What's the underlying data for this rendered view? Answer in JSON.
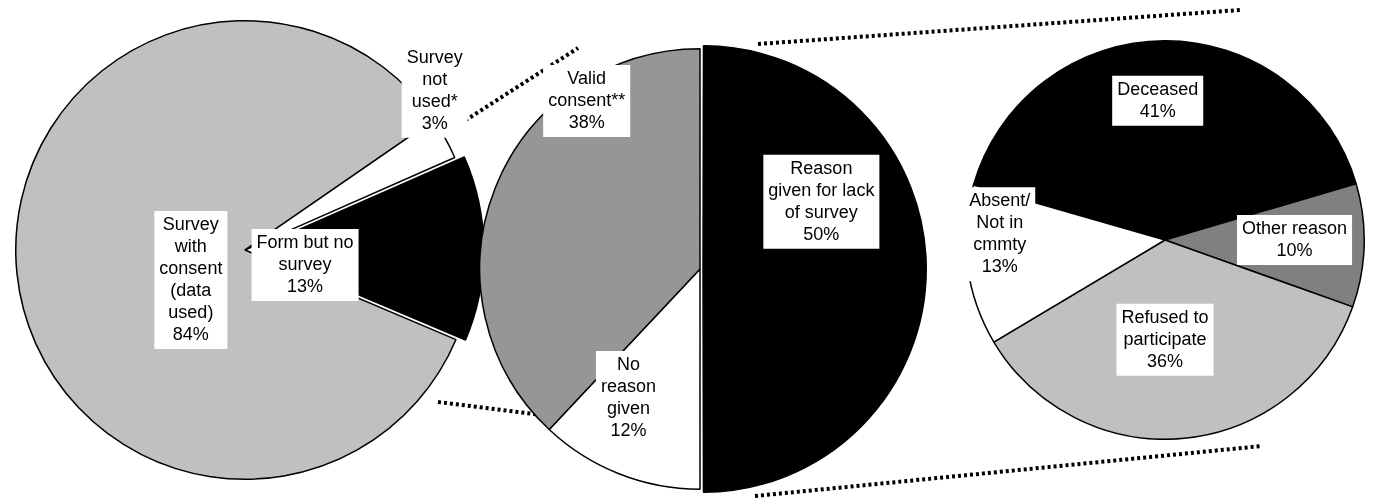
{
  "chart_data": [
    {
      "type": "pie",
      "categories": [
        "Survey with consent (data used)",
        "Survey not used*",
        "Form but no survey"
      ],
      "values": [
        84,
        3,
        13
      ],
      "value_labels": [
        "84%",
        "3%",
        "13%"
      ],
      "colors": [
        "#c0c0c0",
        "#ffffff",
        "#000000"
      ],
      "legend": false
    },
    {
      "type": "pie",
      "categories": [
        "Reason given for lack of survey",
        "No reason given",
        "Valid consent**"
      ],
      "values": [
        50,
        12,
        38
      ],
      "value_labels": [
        "50%",
        "12%",
        "38%"
      ],
      "colors": [
        "#000000",
        "#ffffff",
        "#969696"
      ],
      "legend": false
    },
    {
      "type": "pie",
      "categories": [
        "Deceased",
        "Other reason",
        "Refused to participate",
        "Absent/ Not in cmmty"
      ],
      "values": [
        41,
        10,
        36,
        13
      ],
      "value_labels": [
        "41%",
        "10%",
        "36%",
        "13%"
      ],
      "colors": [
        "#000000",
        "#808080",
        "#c0c0c0",
        "#ffffff"
      ],
      "legend": false
    }
  ]
}
